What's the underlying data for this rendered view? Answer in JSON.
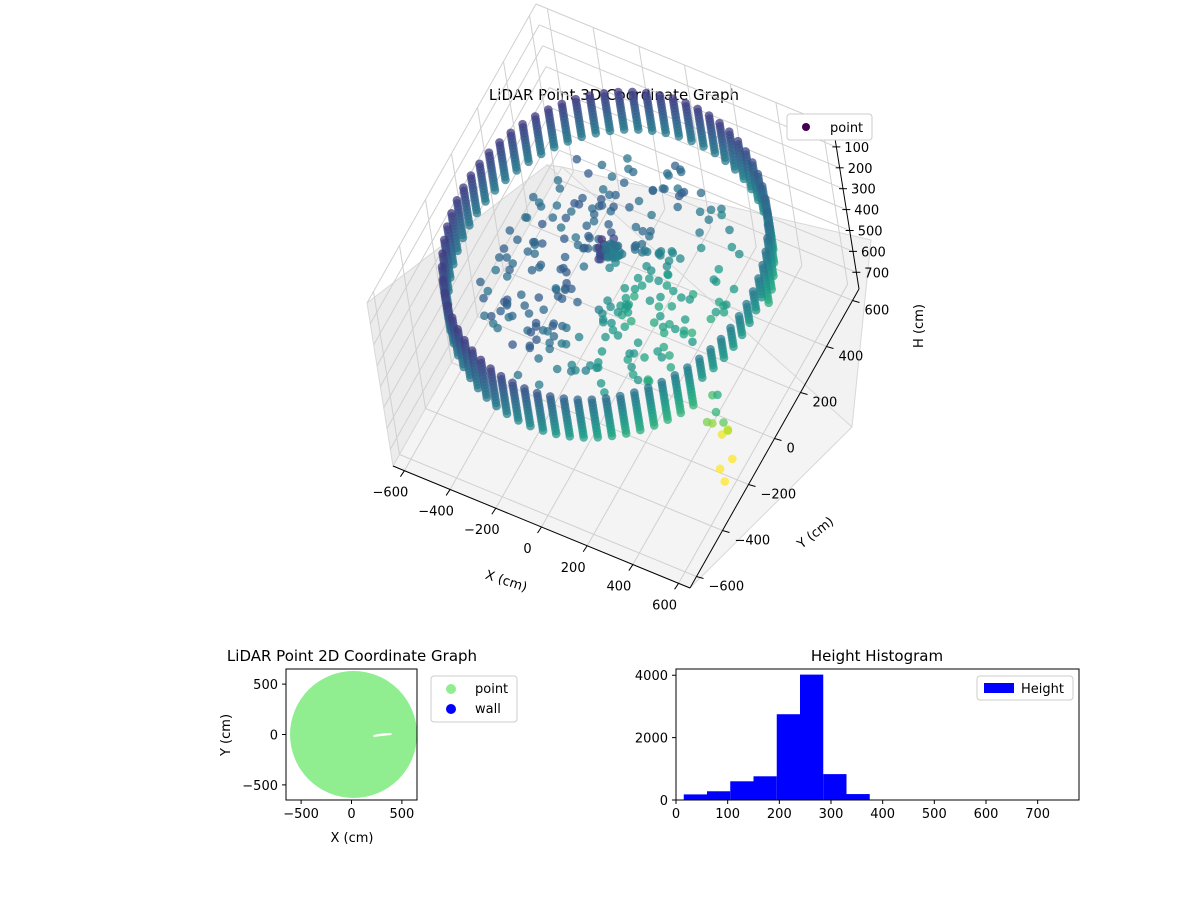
{
  "chart_data": [
    {
      "type": "scatter",
      "projection": "3d",
      "title": "LiDAR Point 3D Coordinate Graph",
      "xlabel": "X (cm)",
      "ylabel": "Y (cm)",
      "zlabel": "H (cm)",
      "xlim": [
        -650,
        650
      ],
      "ylim": [
        -650,
        650
      ],
      "zlim": [
        780,
        0
      ],
      "zaxis_inverted": true,
      "x_ticks": [
        -600,
        -400,
        -200,
        0,
        200,
        400,
        600
      ],
      "y_ticks": [
        -600,
        -400,
        -200,
        0,
        200,
        400,
        600
      ],
      "z_ticks": [
        0,
        100,
        200,
        300,
        400,
        500,
        600,
        700
      ],
      "grid": true,
      "colormap": "viridis",
      "legend": {
        "placement": "upper-right",
        "entries": [
          {
            "name": "point",
            "color": "#440154"
          }
        ]
      },
      "structure": {
        "outer_ring_radius": 620,
        "ring_height_top": 200,
        "ring_height_bottom": 300,
        "central_object": {
          "x": 20,
          "y": 0,
          "height": 130
        }
      }
    },
    {
      "type": "scatter",
      "title": "LiDAR Point 2D Coordinate Graph",
      "xlabel": "X (cm)",
      "ylabel": "Y (cm)",
      "xlim": [
        -650,
        650
      ],
      "ylim": [
        -650,
        650
      ],
      "x_ticks": [
        -500,
        0,
        500
      ],
      "y_ticks": [
        -500,
        0,
        500
      ],
      "shape": {
        "center": [
          20,
          0
        ],
        "radius": 630
      },
      "legend": {
        "placement": "outside-upper-right",
        "entries": [
          {
            "name": "point",
            "color": "#90ee90"
          },
          {
            "name": "wall",
            "color": "#0000ff"
          }
        ]
      }
    },
    {
      "type": "bar",
      "subtype": "histogram",
      "title": "Height Histogram",
      "xlim": [
        0,
        780
      ],
      "ylim": [
        0,
        4200
      ],
      "x_ticks": [
        0,
        100,
        200,
        300,
        400,
        500,
        600,
        700
      ],
      "y_ticks": [
        0,
        2000,
        4000
      ],
      "bin_edges": [
        15,
        60,
        105,
        150,
        195,
        240,
        285,
        330,
        375,
        420,
        465,
        510,
        555,
        600,
        645,
        690,
        735
      ],
      "counts": [
        180,
        280,
        600,
        760,
        2750,
        4020,
        830,
        190,
        8,
        3,
        2,
        2,
        2,
        1,
        1,
        1
      ],
      "color": "#0000ff",
      "legend": {
        "placement": "upper-right",
        "entries": [
          {
            "name": "Height",
            "color": "#0000ff"
          }
        ]
      }
    }
  ]
}
